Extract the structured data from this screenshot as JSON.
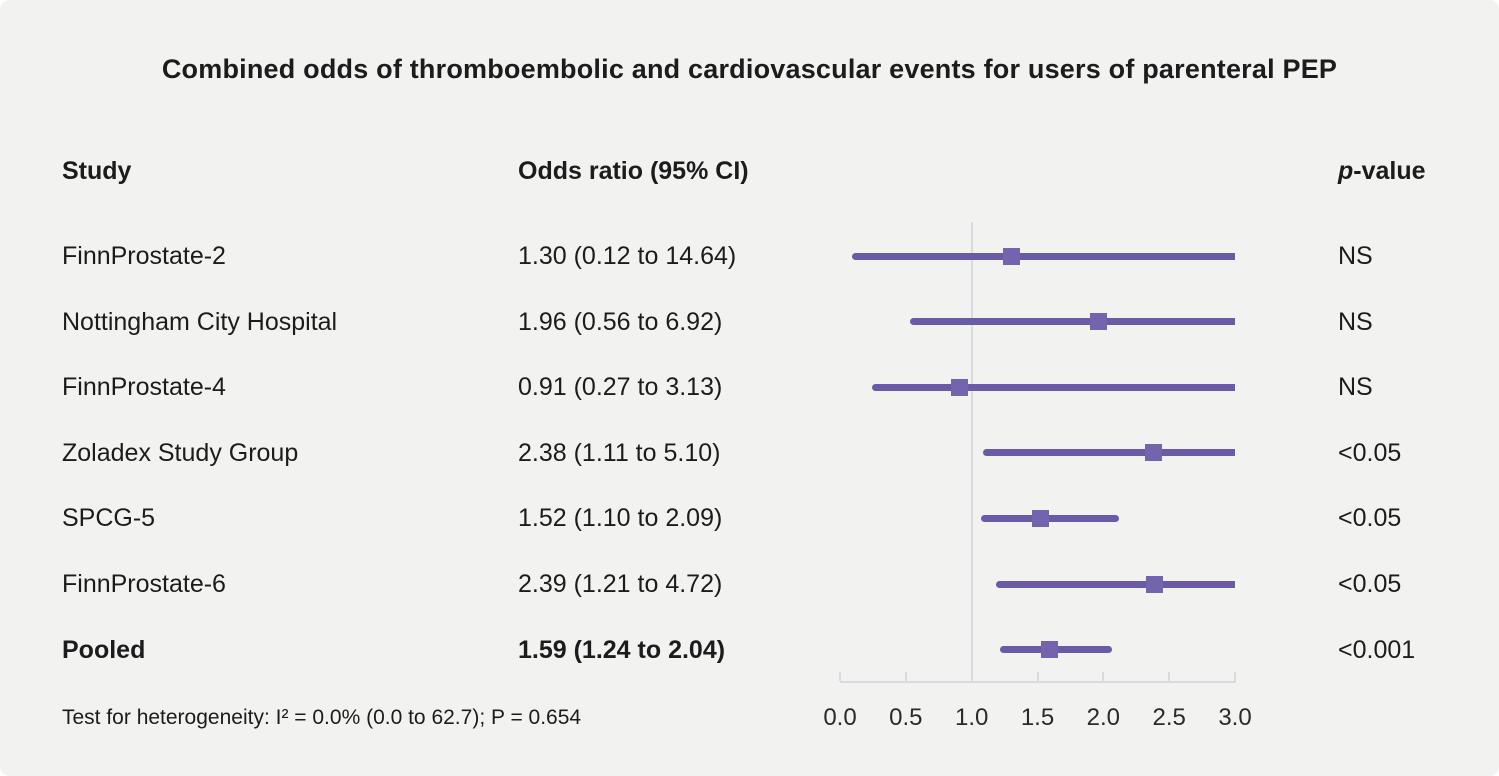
{
  "title": "Combined odds of thromboembolic and cardiovascular events for users of parenteral PEP",
  "header": {
    "study": "Study",
    "odds_ratio": "Odds ratio (95% CI)",
    "p_value_italic": "p",
    "p_value_rest": "-value"
  },
  "footnote": "Test for heterogeneity: I² = 0.0% (0.0 to 62.7); P = 0.654",
  "chart_data": {
    "type": "forest",
    "title": "Combined odds of thromboembolic and cardiovascular events for users of parenteral PEP",
    "xlim": [
      0.0,
      3.0
    ],
    "reference_line": 1.0,
    "tick_values": [
      0.0,
      0.5,
      1.0,
      1.5,
      2.0,
      2.5,
      3.0
    ],
    "tick_labels": [
      "0.0",
      "0.5",
      "1.0",
      "1.5",
      "2.0",
      "2.5",
      "3.0"
    ],
    "legend_position": "none",
    "grid": false,
    "rows": [
      {
        "study": "FinnProstate-2",
        "or_text": "1.30 (0.12 to 14.64)",
        "or": 1.3,
        "ci_low": 0.12,
        "ci_high": 14.64,
        "p": "NS",
        "bold": false
      },
      {
        "study": "Nottingham City Hospital",
        "or_text": "1.96 (0.56 to 6.92)",
        "or": 1.96,
        "ci_low": 0.56,
        "ci_high": 6.92,
        "p": "NS",
        "bold": false
      },
      {
        "study": "FinnProstate-4",
        "or_text": "0.91 (0.27 to 3.13)",
        "or": 0.91,
        "ci_low": 0.27,
        "ci_high": 3.13,
        "p": "NS",
        "bold": false
      },
      {
        "study": "Zoladex Study Group",
        "or_text": "2.38 (1.11 to 5.10)",
        "or": 2.38,
        "ci_low": 1.11,
        "ci_high": 5.1,
        "p": "<0.05",
        "bold": false
      },
      {
        "study": "SPCG-5",
        "or_text": "1.52 (1.10 to 2.09)",
        "or": 1.52,
        "ci_low": 1.1,
        "ci_high": 2.09,
        "p": "<0.05",
        "bold": false
      },
      {
        "study": "FinnProstate-6",
        "or_text": "2.39 (1.21 to 4.72)",
        "or": 2.39,
        "ci_low": 1.21,
        "ci_high": 4.72,
        "p": "<0.05",
        "bold": false
      },
      {
        "study": "Pooled",
        "or_text": "1.59 (1.24 to 2.04)",
        "or": 1.59,
        "ci_low": 1.24,
        "ci_high": 2.04,
        "p": "<0.001",
        "bold": true
      }
    ]
  },
  "colors": {
    "background": "#f2f2f1",
    "ci_line": "#6b5ba7",
    "marker": "#7464ad",
    "axis": "#d8dbe0",
    "text": "#1c1c1c"
  }
}
